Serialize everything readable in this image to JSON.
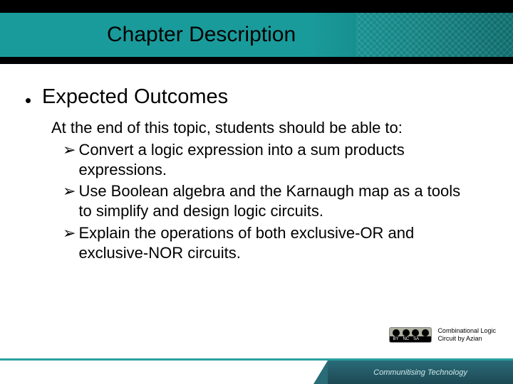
{
  "header": {
    "title": "Chapter Description",
    "colors": {
      "black_bar": "#000000",
      "teal_start": "#1a9b9b",
      "teal_end": "#0d6b6b"
    },
    "title_fontsize": 30
  },
  "content": {
    "section_heading": "Expected Outcomes",
    "intro": "At the end of this topic, students should be able to:",
    "outcomes": [
      "Convert a logic expression into a sum products expressions.",
      "Use Boolean algebra and the Karnaugh map as a tools to simplify and design logic circuits.",
      "Explain the operations of both exclusive-OR and exclusive-NOR circuits."
    ],
    "bullet_marker": "➢",
    "heading_fontsize": 29,
    "body_fontsize": 22,
    "text_color": "#000000"
  },
  "attribution": {
    "line1": "Combinational Logic",
    "line2": "Circuit by Azian",
    "cc_labels": {
      "by": "BY",
      "nc": "NC",
      "sa": "SA"
    }
  },
  "footer": {
    "brand_text": "Communitising Technology",
    "line_color": "#2aa0a0",
    "bar_gradient_top": "#2a6b78",
    "bar_gradient_bottom": "#1d4a54"
  }
}
